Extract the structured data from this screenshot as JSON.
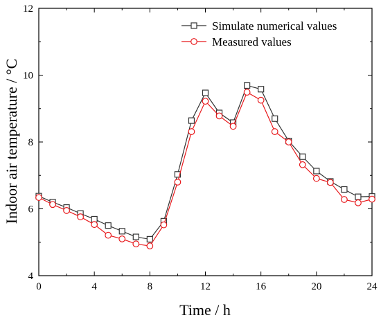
{
  "chart_data": {
    "type": "line",
    "xlabel": "Time / h",
    "ylabel": "Indoor air temperature / °C",
    "xlim": [
      0,
      24
    ],
    "ylim": [
      4,
      12
    ],
    "xticks": [
      0,
      4,
      8,
      12,
      16,
      20,
      24
    ],
    "yticks": [
      4,
      6,
      8,
      10,
      12
    ],
    "grid": false,
    "legend_position": "top-right",
    "x": [
      0,
      1,
      2,
      3,
      4,
      5,
      6,
      7,
      8,
      9,
      10,
      11,
      12,
      13,
      14,
      15,
      16,
      17,
      18,
      19,
      20,
      21,
      22,
      23,
      24
    ],
    "series": [
      {
        "name": "Simulate numerical values",
        "color": "#333333",
        "marker": "square",
        "values": [
          6.38,
          6.2,
          6.04,
          5.86,
          5.69,
          5.5,
          5.33,
          5.16,
          5.09,
          5.63,
          7.03,
          8.64,
          9.47,
          8.87,
          8.58,
          9.69,
          9.58,
          8.7,
          8.03,
          7.56,
          7.13,
          6.82,
          6.58,
          6.36,
          6.37
        ]
      },
      {
        "name": "Measured values",
        "color": "#e8191c",
        "marker": "circle",
        "values": [
          6.34,
          6.13,
          5.95,
          5.76,
          5.53,
          5.21,
          5.1,
          4.95,
          4.89,
          5.52,
          6.8,
          8.31,
          9.22,
          8.78,
          8.47,
          9.49,
          9.25,
          8.31,
          8.0,
          7.32,
          6.91,
          6.79,
          6.28,
          6.18,
          6.29
        ]
      }
    ]
  }
}
